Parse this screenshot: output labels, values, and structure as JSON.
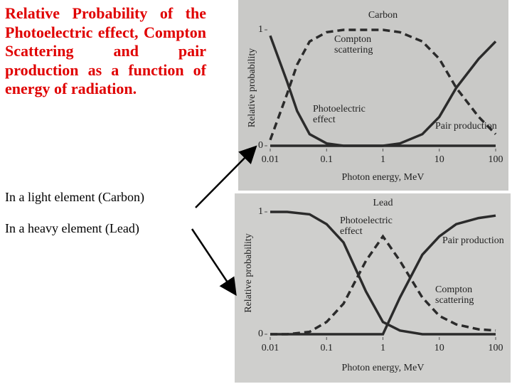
{
  "text": {
    "heading": "Relative Probability of the Photoelectric effect, Compton Scattering and pair production as a function of energy of radiation.",
    "notes": [
      "In a light element (Carbon)",
      "In a heavy element (Lead)"
    ]
  },
  "chart_data": [
    {
      "type": "line",
      "title": "Carbon",
      "x_label": "Photon energy, MeV",
      "y_label": "Relative probability",
      "xscale": "log",
      "xlim": [
        0.01,
        100
      ],
      "xticks": [
        0.01,
        0.1,
        1,
        10,
        100
      ],
      "ylim": [
        0,
        1
      ],
      "yticks": [
        0,
        1
      ],
      "x": [
        0.01,
        0.02,
        0.03,
        0.05,
        0.1,
        0.2,
        0.5,
        1,
        2,
        5,
        10,
        20,
        50,
        100
      ],
      "series": [
        {
          "name": "Compton scattering",
          "color": "#2b2b2b",
          "style": "dashed",
          "values": [
            0.05,
            0.45,
            0.7,
            0.9,
            0.98,
            1,
            1,
            1,
            0.98,
            0.9,
            0.75,
            0.5,
            0.25,
            0.1
          ]
        },
        {
          "name": "Photoelectric effect",
          "color": "#2b2b2b",
          "style": "solid",
          "values": [
            0.95,
            0.55,
            0.3,
            0.1,
            0.02,
            0,
            0,
            0,
            0,
            0,
            0,
            0,
            0,
            0
          ]
        },
        {
          "name": "Pair production",
          "color": "#2b2b2b",
          "style": "solid",
          "values": [
            0,
            0,
            0,
            0,
            0,
            0,
            0,
            0,
            0.02,
            0.1,
            0.25,
            0.5,
            0.75,
            0.9
          ]
        }
      ]
    },
    {
      "type": "line",
      "title": "Lead",
      "x_label": "Photon energy, MeV",
      "y_label": "Relative probability",
      "xscale": "log",
      "xlim": [
        0.01,
        100
      ],
      "xticks": [
        0.01,
        0.1,
        1,
        10,
        100
      ],
      "ylim": [
        0,
        1
      ],
      "yticks": [
        0,
        1
      ],
      "x": [
        0.01,
        0.02,
        0.05,
        0.1,
        0.2,
        0.5,
        1,
        2,
        5,
        10,
        20,
        50,
        100
      ],
      "series": [
        {
          "name": "Photoelectric effect",
          "color": "#2b2b2b",
          "style": "solid",
          "values": [
            1,
            1,
            0.98,
            0.9,
            0.75,
            0.35,
            0.1,
            0.03,
            0,
            0,
            0,
            0,
            0
          ]
        },
        {
          "name": "Pair production",
          "color": "#2b2b2b",
          "style": "solid",
          "values": [
            0,
            0,
            0,
            0,
            0,
            0,
            0,
            0.3,
            0.65,
            0.8,
            0.9,
            0.95,
            0.97
          ]
        },
        {
          "name": "Compton scattering",
          "color": "#2b2b2b",
          "style": "dashed",
          "values": [
            0,
            0,
            0.02,
            0.1,
            0.25,
            0.6,
            0.8,
            0.6,
            0.3,
            0.15,
            0.08,
            0.04,
            0.03
          ]
        }
      ]
    }
  ]
}
